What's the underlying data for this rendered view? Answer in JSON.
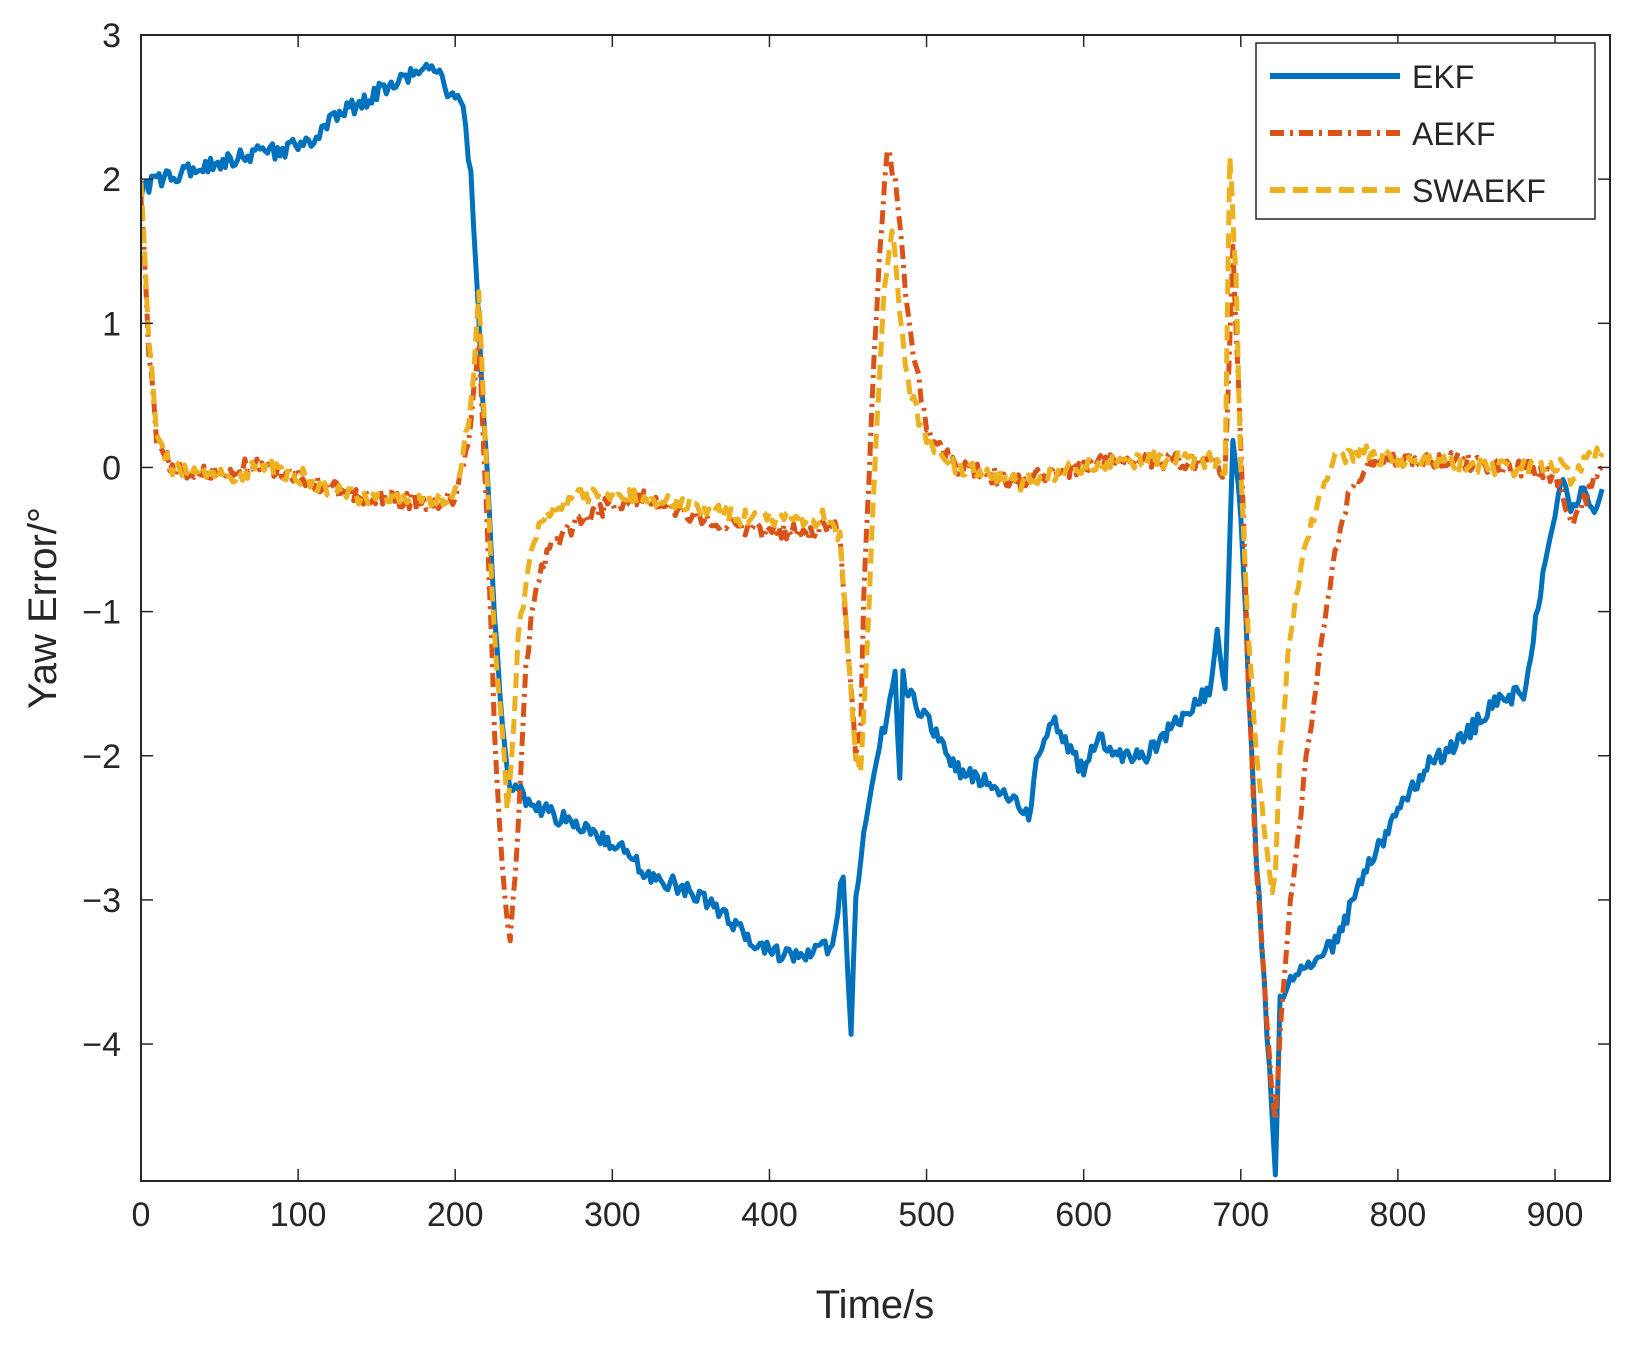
{
  "chart_data": {
    "type": "line",
    "title": "",
    "xlabel": "Time/s",
    "ylabel": "Yaw Error/°",
    "xlim": [
      0,
      935
    ],
    "ylim": [
      -4.95,
      3
    ],
    "xticks": [
      0,
      100,
      200,
      300,
      400,
      500,
      600,
      700,
      800,
      900
    ],
    "xtick_labels": [
      "0",
      "100",
      "200",
      "300",
      "400",
      "500",
      "600",
      "700",
      "800",
      "900"
    ],
    "yticks": [
      -4,
      -3,
      -2,
      -1,
      0,
      1,
      2,
      3
    ],
    "ytick_labels": [
      "−4",
      "−3",
      "−2",
      "−1",
      "0",
      "1",
      "2",
      "3"
    ],
    "grid": false,
    "legend": {
      "position": "top-right",
      "entries": [
        "EKF",
        "AEKF",
        "SWAEKF"
      ]
    },
    "series": [
      {
        "name": "EKF",
        "color": "#0072BD",
        "style": "solid",
        "x": [
          0,
          10,
          30,
          60,
          90,
          105,
          120,
          150,
          170,
          180,
          190,
          195,
          200,
          205,
          210,
          215,
          220,
          225,
          230,
          235,
          240,
          250,
          280,
          300,
          320,
          340,
          360,
          380,
          400,
          420,
          440,
          447,
          450,
          452,
          455,
          460,
          470,
          480,
          483,
          485,
          490,
          500,
          520,
          540,
          560,
          565,
          570,
          580,
          590,
          600,
          610,
          620,
          640,
          660,
          680,
          685,
          690,
          695,
          700,
          705,
          710,
          715,
          720,
          722,
          725,
          730,
          740,
          760,
          780,
          800,
          820,
          840,
          860,
          880,
          900,
          902,
          905,
          910,
          915,
          920,
          925,
          930
        ],
        "y": [
          1.9,
          2.0,
          2.05,
          2.15,
          2.2,
          2.25,
          2.4,
          2.6,
          2.7,
          2.8,
          2.75,
          2.6,
          2.6,
          2.5,
          2.0,
          1.0,
          0.0,
          -1.0,
          -1.8,
          -2.2,
          -2.25,
          -2.35,
          -2.5,
          -2.6,
          -2.8,
          -2.9,
          -3.0,
          -3.2,
          -3.35,
          -3.4,
          -3.3,
          -2.8,
          -3.6,
          -3.9,
          -3.0,
          -2.5,
          -1.95,
          -1.45,
          -2.2,
          -1.45,
          -1.6,
          -1.75,
          -2.1,
          -2.2,
          -2.35,
          -2.45,
          -2.0,
          -1.75,
          -1.95,
          -2.1,
          -1.85,
          -2.0,
          -2.0,
          -1.75,
          -1.55,
          -1.15,
          -1.55,
          0.2,
          -0.3,
          -1.5,
          -2.7,
          -3.6,
          -4.5,
          -4.95,
          -3.7,
          -3.6,
          -3.5,
          -3.3,
          -2.8,
          -2.4,
          -2.05,
          -1.9,
          -1.65,
          -1.55,
          -0.3,
          -0.2,
          -0.1,
          -0.3,
          -0.2,
          -0.15,
          -0.3,
          -0.15
        ]
      },
      {
        "name": "AEKF",
        "color": "#D95319",
        "style": "dashdot",
        "x": [
          0,
          2,
          5,
          10,
          20,
          40,
          60,
          80,
          100,
          120,
          140,
          160,
          180,
          200,
          210,
          215,
          220,
          225,
          230,
          235,
          240,
          245,
          250,
          260,
          280,
          300,
          320,
          340,
          360,
          380,
          400,
          420,
          440,
          445,
          450,
          455,
          458,
          460,
          465,
          470,
          475,
          480,
          485,
          490,
          500,
          510,
          520,
          540,
          560,
          580,
          600,
          620,
          640,
          660,
          680,
          690,
          695,
          700,
          705,
          710,
          715,
          720,
          722,
          725,
          730,
          740,
          750,
          760,
          770,
          780,
          800,
          820,
          840,
          860,
          880,
          900,
          905,
          910,
          920,
          930
        ],
        "y": [
          1.9,
          1.5,
          0.8,
          0.2,
          0.0,
          -0.05,
          0.0,
          0.0,
          -0.05,
          -0.15,
          -0.2,
          -0.2,
          -0.25,
          -0.2,
          0.3,
          0.9,
          -0.3,
          -1.8,
          -2.8,
          -3.3,
          -2.5,
          -1.4,
          -0.9,
          -0.55,
          -0.35,
          -0.25,
          -0.2,
          -0.3,
          -0.35,
          -0.4,
          -0.45,
          -0.45,
          -0.4,
          -0.5,
          -1.3,
          -2.0,
          -1.8,
          -0.9,
          0.4,
          1.5,
          2.2,
          2.0,
          1.4,
          0.9,
          0.3,
          0.1,
          0.0,
          -0.05,
          -0.1,
          -0.05,
          0.0,
          0.05,
          0.05,
          0.05,
          0.05,
          -0.05,
          1.5,
          0.2,
          -1.5,
          -2.8,
          -3.6,
          -4.35,
          -4.5,
          -3.9,
          -3.2,
          -2.2,
          -1.3,
          -0.6,
          -0.15,
          0.0,
          0.05,
          0.05,
          0.05,
          0.0,
          0.0,
          -0.05,
          -0.2,
          -0.4,
          -0.2,
          0.0
        ]
      },
      {
        "name": "SWAEKF",
        "color": "#EDB120",
        "style": "dashed",
        "x": [
          0,
          2,
          5,
          10,
          20,
          40,
          60,
          80,
          100,
          120,
          140,
          160,
          180,
          200,
          210,
          215,
          220,
          225,
          230,
          233,
          236,
          240,
          245,
          250,
          260,
          280,
          300,
          320,
          340,
          360,
          380,
          400,
          420,
          440,
          445,
          450,
          455,
          458,
          462,
          468,
          473,
          478,
          483,
          490,
          500,
          510,
          520,
          540,
          560,
          580,
          600,
          620,
          640,
          660,
          680,
          690,
          693,
          697,
          700,
          705,
          710,
          715,
          720,
          722,
          725,
          730,
          740,
          750,
          760,
          770,
          780,
          800,
          820,
          840,
          860,
          880,
          900,
          905,
          910,
          920,
          930
        ],
        "y": [
          2.0,
          1.6,
          0.9,
          0.2,
          0.0,
          -0.05,
          -0.05,
          0.0,
          -0.05,
          -0.15,
          -0.2,
          -0.2,
          -0.25,
          -0.2,
          0.4,
          1.2,
          0.0,
          -1.2,
          -1.8,
          -2.4,
          -2.0,
          -1.2,
          -0.8,
          -0.5,
          -0.3,
          -0.2,
          -0.2,
          -0.2,
          -0.25,
          -0.3,
          -0.35,
          -0.35,
          -0.35,
          -0.35,
          -0.5,
          -1.3,
          -2.0,
          -2.1,
          -1.3,
          0.2,
          1.2,
          1.7,
          1.0,
          0.5,
          0.2,
          0.05,
          0.0,
          -0.05,
          -0.1,
          -0.05,
          0.0,
          0.05,
          0.05,
          0.05,
          0.05,
          0.0,
          2.2,
          1.3,
          0.0,
          -1.2,
          -2.0,
          -2.5,
          -3.0,
          -2.8,
          -2.0,
          -1.3,
          -0.6,
          -0.2,
          0.05,
          0.1,
          0.1,
          0.05,
          0.05,
          0.0,
          0.0,
          0.0,
          0.0,
          0.0,
          -0.1,
          0.05,
          0.1
        ]
      }
    ]
  }
}
